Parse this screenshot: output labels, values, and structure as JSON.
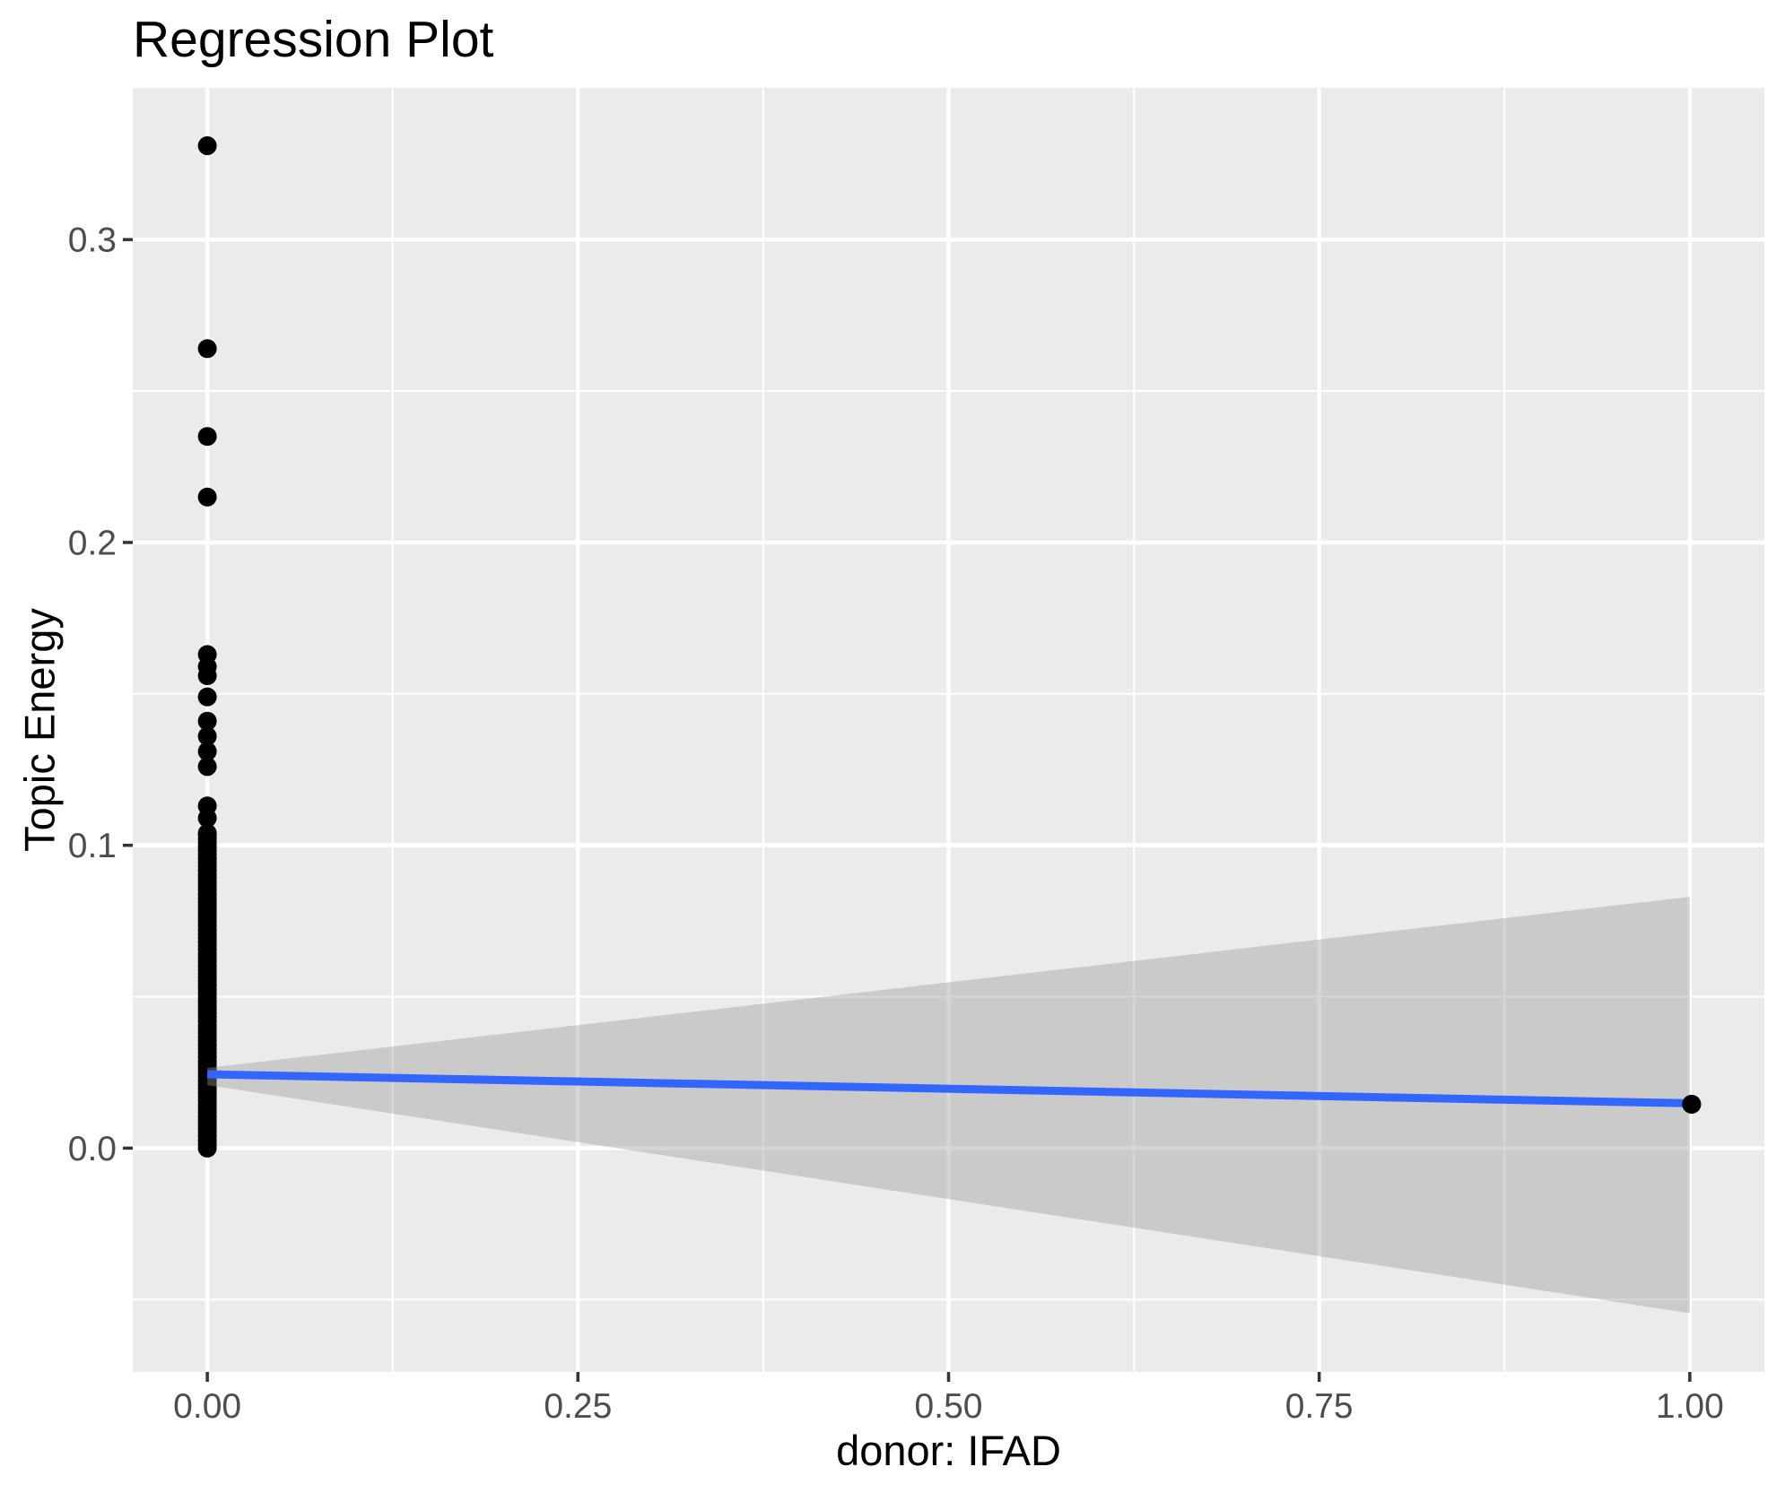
{
  "figure": {
    "title": "Regression Plot"
  },
  "chart_data": {
    "type": "scatter",
    "title": "Regression Plot",
    "xlabel": "donor: IFAD",
    "ylabel": "Topic Energy",
    "xlim": [
      -0.0503,
      1.0503
    ],
    "ylim": [
      -0.0739,
      0.3501
    ],
    "grid": true,
    "legend": "none",
    "x_ticks": {
      "values": [
        0,
        0.25,
        0.5,
        0.75,
        1.0
      ],
      "labels": [
        "0.00",
        "0.25",
        "0.50",
        "0.75",
        "1.00"
      ],
      "minor": [
        0.125,
        0.375,
        0.625,
        0.875
      ]
    },
    "y_ticks": {
      "values": [
        0,
        0.1,
        0.2,
        0.3
      ],
      "labels": [
        "0.0",
        "0.1",
        "0.2",
        "0.3"
      ],
      "minor": [
        -0.05,
        0.05,
        0.15,
        0.25
      ]
    },
    "points": [
      {
        "x": 0,
        "y": 0.331
      },
      {
        "x": 0,
        "y": 0.264
      },
      {
        "x": 0,
        "y": 0.235
      },
      {
        "x": 0,
        "y": 0.215
      },
      {
        "x": 0,
        "y": 0.163
      },
      {
        "x": 0,
        "y": 0.159
      },
      {
        "x": 0,
        "y": 0.156
      },
      {
        "x": 0,
        "y": 0.149
      },
      {
        "x": 0,
        "y": 0.141
      },
      {
        "x": 0,
        "y": 0.136
      },
      {
        "x": 0,
        "y": 0.131
      },
      {
        "x": 0,
        "y": 0.126
      },
      {
        "x": 0,
        "y": 0.113
      },
      {
        "x": 0,
        "y": 0.109
      },
      {
        "x": 0,
        "y": 0.104
      },
      {
        "x": 1,
        "y": 0.0145
      }
    ],
    "dense_column": {
      "x": 0,
      "y_min": 0.0,
      "y_max": 0.1035,
      "note": "heavily overplotted points at donor=0 forming a solid column",
      "render_count": 80
    },
    "regression_line": {
      "x": [
        0,
        1
      ],
      "y": [
        0.0244,
        0.0148
      ]
    },
    "confidence_band": {
      "x": [
        0,
        1,
        1,
        0
      ],
      "y": [
        0.0265,
        0.083,
        -0.0545,
        0.0208
      ]
    },
    "colors": {
      "panel_background": "#EBEBEB",
      "gridline": "#FFFFFF",
      "point": "#000000",
      "regression_line": "#3366FF",
      "confidence_band_fill": "#999999",
      "confidence_band_opacity": 0.4,
      "tick_label": "#4D4D4D",
      "tick_mark": "#333333",
      "title": "#000000"
    }
  }
}
